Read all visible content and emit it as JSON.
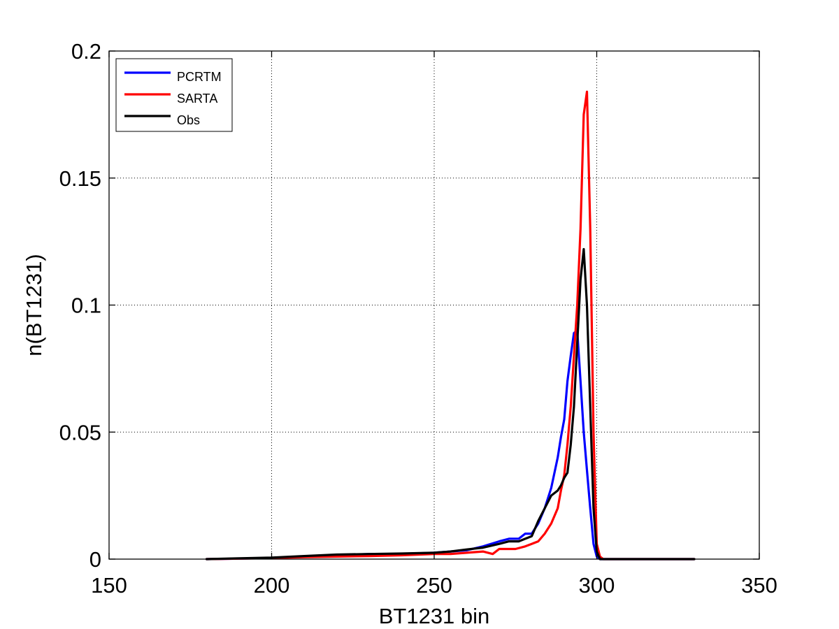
{
  "chart_data": {
    "type": "line",
    "title": "",
    "xlabel": "BT1231 bin",
    "ylabel": "n(BT1231)",
    "xlim": [
      150,
      350
    ],
    "ylim": [
      0,
      0.2
    ],
    "xticks": [
      150,
      200,
      250,
      300,
      350
    ],
    "yticks": [
      0,
      0.05,
      0.1,
      0.15,
      0.2
    ],
    "xtick_labels": [
      "150",
      "200",
      "250",
      "300",
      "350"
    ],
    "ytick_labels": [
      "0",
      "0.05",
      "0.1",
      "0.15",
      "0.2"
    ],
    "grid": true,
    "legend_position": "top-left",
    "series": [
      {
        "name": "PCRTM",
        "color": "#0000ff",
        "x": [
          180,
          190,
          200,
          210,
          220,
          230,
          240,
          250,
          255,
          260,
          265,
          270,
          273,
          276,
          278,
          280,
          282,
          284,
          286,
          288,
          289,
          290,
          291,
          292,
          293,
          294,
          295,
          296,
          297,
          298,
          299,
          300,
          301,
          302,
          310,
          320,
          330
        ],
        "y": [
          0,
          0.0002,
          0.0005,
          0.001,
          0.0015,
          0.002,
          0.002,
          0.0025,
          0.003,
          0.0035,
          0.005,
          0.007,
          0.008,
          0.008,
          0.01,
          0.01,
          0.014,
          0.02,
          0.028,
          0.04,
          0.048,
          0.055,
          0.07,
          0.08,
          0.089,
          0.09,
          0.07,
          0.05,
          0.035,
          0.02,
          0.006,
          0.001,
          0,
          0,
          0,
          0,
          0
        ]
      },
      {
        "name": "SARTA",
        "color": "#ff0000",
        "x": [
          180,
          190,
          200,
          210,
          220,
          230,
          240,
          250,
          255,
          260,
          265,
          268,
          270,
          275,
          278,
          280,
          282,
          284,
          286,
          288,
          289,
          290,
          291,
          292,
          293,
          294,
          295,
          296,
          297,
          298,
          299,
          300,
          301,
          302,
          310,
          320,
          330
        ],
        "y": [
          0,
          0.0002,
          0.0004,
          0.0008,
          0.001,
          0.0012,
          0.0015,
          0.002,
          0.002,
          0.0025,
          0.003,
          0.002,
          0.004,
          0.004,
          0.005,
          0.006,
          0.007,
          0.01,
          0.014,
          0.02,
          0.027,
          0.033,
          0.045,
          0.06,
          0.08,
          0.1,
          0.13,
          0.175,
          0.184,
          0.13,
          0.05,
          0.006,
          0.001,
          0,
          0,
          0,
          0
        ]
      },
      {
        "name": "Obs",
        "color": "#000000",
        "x": [
          180,
          190,
          200,
          210,
          220,
          230,
          240,
          250,
          255,
          260,
          265,
          270,
          273,
          276,
          278,
          280,
          282,
          284,
          286,
          288,
          289,
          290,
          291,
          292,
          293,
          294,
          295,
          296,
          297,
          298,
          299,
          300,
          301,
          302,
          310,
          320,
          330
        ],
        "y": [
          0,
          0.0003,
          0.0006,
          0.0012,
          0.0018,
          0.002,
          0.0022,
          0.0025,
          0.003,
          0.0038,
          0.0045,
          0.006,
          0.007,
          0.007,
          0.008,
          0.009,
          0.015,
          0.02,
          0.025,
          0.027,
          0.029,
          0.032,
          0.034,
          0.045,
          0.06,
          0.085,
          0.11,
          0.122,
          0.1,
          0.06,
          0.02,
          0.003,
          0,
          0,
          0,
          0,
          0
        ]
      }
    ]
  }
}
